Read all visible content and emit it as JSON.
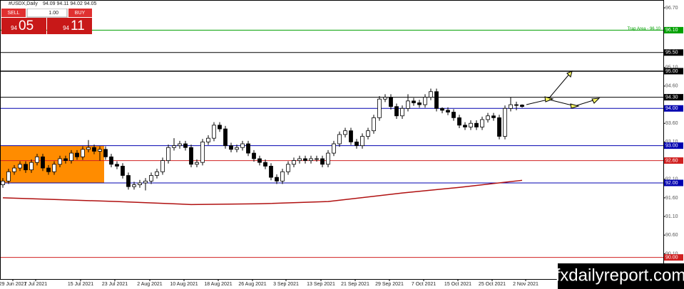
{
  "chart_data": {
    "type": "candlestick",
    "title": "#USDX,Daily",
    "header_values": "94.09 94.11 94.02 94.05",
    "trade_panel": {
      "sell": "SELL",
      "lot": "1.00",
      "buy": "BUY",
      "sell_big": "94",
      "sell_small": "05",
      "buy_big": "94",
      "buy_small": "11"
    },
    "watermark": "fxdailyreport.com",
    "categories": [
      "29 Jun 2021",
      "7 Jul 2021",
      "15 Jul 2021",
      "23 Jul 2021",
      "2 Aug 2021",
      "10 Aug 2021",
      "18 Aug 2021",
      "26 Aug 2021",
      "3 Sep 2021",
      "13 Sep 2021",
      "21 Sep 2021",
      "29 Sep 2021",
      "7 Oct 2021",
      "15 Oct 2021",
      "25 Oct 2021",
      "2 Nov 2021"
    ],
    "ylim": [
      89.42,
      96.91
    ],
    "yticks": [
      {
        "value": 96.7,
        "label": "96.70"
      },
      {
        "value": 96.1,
        "label": "96.10"
      },
      {
        "value": 95.1,
        "label": "95.10"
      },
      {
        "value": 94.6,
        "label": "94.60"
      },
      {
        "value": 93.6,
        "label": "93.60"
      },
      {
        "value": 93.1,
        "label": "93.10"
      },
      {
        "value": 92.1,
        "label": "92.10"
      },
      {
        "value": 91.6,
        "label": "91.60"
      },
      {
        "value": 91.1,
        "label": "91.10"
      },
      {
        "value": 90.6,
        "label": "90.60"
      },
      {
        "value": 90.1,
        "label": "90.10"
      }
    ],
    "levels": [
      {
        "value": 96.1,
        "label": "96.10",
        "color": "#00a000",
        "note": "Trap Area - 96.10"
      },
      {
        "value": 95.5,
        "label": "95.50",
        "color": "#000000"
      },
      {
        "value": 95.0,
        "label": "95.00",
        "color": "#000000"
      },
      {
        "value": 94.3,
        "label": "94.30",
        "color": "#000000"
      },
      {
        "value": 94.0,
        "label": "94.00",
        "color": "#0000b0"
      },
      {
        "value": 93.0,
        "label": "93.00",
        "color": "#0000b0"
      },
      {
        "value": 92.6,
        "label": "92.60",
        "color": "#d02020"
      },
      {
        "value": 92.0,
        "label": "92.00",
        "color": "#0000b0"
      },
      {
        "value": 90.0,
        "label": "90.00",
        "color": "#d02020"
      }
    ],
    "zone": {
      "from": 92.0,
      "to": 93.0,
      "color": "#ff8c00"
    },
    "ohlc": [
      [
        91.95,
        92.13,
        91.87,
        92.05
      ],
      [
        92.05,
        92.38,
        91.97,
        92.3
      ],
      [
        92.3,
        92.48,
        92.22,
        92.4
      ],
      [
        92.4,
        92.58,
        92.32,
        92.5
      ],
      [
        92.5,
        92.58,
        92.27,
        92.35
      ],
      [
        92.35,
        92.63,
        92.27,
        92.55
      ],
      [
        92.55,
        92.78,
        92.47,
        92.7
      ],
      [
        92.7,
        92.78,
        92.32,
        92.4
      ],
      [
        92.4,
        92.48,
        92.22,
        92.3
      ],
      [
        92.3,
        92.58,
        92.22,
        92.5
      ],
      [
        92.5,
        92.73,
        92.42,
        92.65
      ],
      [
        92.65,
        92.73,
        92.52,
        92.6
      ],
      [
        92.6,
        92.88,
        92.52,
        92.8
      ],
      [
        92.8,
        92.88,
        92.62,
        92.7
      ],
      [
        92.7,
        92.98,
        92.62,
        92.9
      ],
      [
        92.9,
        93.15,
        92.82,
        92.95
      ],
      [
        92.95,
        93.03,
        92.77,
        92.85
      ],
      [
        92.85,
        92.98,
        92.6,
        92.9
      ],
      [
        92.9,
        92.98,
        92.62,
        92.7
      ],
      [
        92.7,
        92.78,
        92.42,
        92.5
      ],
      [
        92.5,
        92.58,
        92.37,
        92.45
      ],
      [
        92.45,
        92.53,
        92.12,
        92.2
      ],
      [
        92.2,
        92.28,
        91.82,
        91.9
      ],
      [
        91.9,
        92.03,
        91.82,
        91.95
      ],
      [
        91.95,
        92.08,
        91.87,
        92.0
      ],
      [
        92.0,
        92.13,
        91.8,
        92.05
      ],
      [
        92.05,
        92.28,
        91.97,
        92.2
      ],
      [
        92.2,
        92.38,
        92.12,
        92.3
      ],
      [
        92.3,
        92.68,
        92.22,
        92.6
      ],
      [
        92.6,
        93.03,
        92.52,
        92.95
      ],
      [
        92.95,
        93.2,
        92.87,
        93.0
      ],
      [
        93.0,
        93.13,
        92.92,
        93.05
      ],
      [
        93.05,
        93.13,
        92.87,
        92.95
      ],
      [
        92.95,
        93.03,
        92.42,
        92.5
      ],
      [
        92.5,
        92.63,
        92.42,
        92.55
      ],
      [
        92.55,
        93.18,
        92.47,
        93.1
      ],
      [
        93.1,
        93.28,
        93.02,
        93.2
      ],
      [
        93.2,
        93.63,
        93.12,
        93.55
      ],
      [
        93.55,
        93.63,
        93.37,
        93.45
      ],
      [
        93.45,
        93.53,
        92.92,
        93.0
      ],
      [
        93.0,
        93.08,
        92.82,
        92.9
      ],
      [
        92.9,
        93.03,
        92.82,
        92.95
      ],
      [
        92.95,
        93.13,
        92.87,
        93.05
      ],
      [
        93.05,
        93.13,
        92.72,
        92.8
      ],
      [
        92.8,
        92.88,
        92.57,
        92.65
      ],
      [
        92.65,
        92.73,
        92.47,
        92.55
      ],
      [
        92.55,
        92.63,
        92.37,
        92.45
      ],
      [
        92.45,
        92.53,
        92.07,
        92.15
      ],
      [
        92.15,
        92.23,
        91.97,
        92.05
      ],
      [
        92.05,
        92.38,
        91.97,
        92.3
      ],
      [
        92.3,
        92.58,
        92.22,
        92.5
      ],
      [
        92.5,
        92.68,
        92.42,
        92.6
      ],
      [
        92.6,
        92.73,
        92.52,
        92.65
      ],
      [
        92.65,
        92.73,
        92.52,
        92.6
      ],
      [
        92.6,
        92.73,
        92.52,
        92.65
      ],
      [
        92.65,
        92.73,
        92.57,
        92.65
      ],
      [
        92.65,
        92.73,
        92.42,
        92.5
      ],
      [
        92.5,
        92.88,
        92.42,
        92.8
      ],
      [
        92.8,
        93.13,
        92.72,
        93.05
      ],
      [
        93.05,
        93.38,
        92.97,
        93.3
      ],
      [
        93.3,
        93.48,
        93.22,
        93.4
      ],
      [
        93.4,
        93.48,
        93.02,
        93.1
      ],
      [
        93.1,
        93.18,
        92.92,
        93.0
      ],
      [
        93.0,
        93.33,
        92.92,
        93.25
      ],
      [
        93.25,
        93.48,
        93.17,
        93.4
      ],
      [
        93.4,
        93.83,
        93.32,
        93.75
      ],
      [
        93.75,
        94.33,
        93.67,
        94.25
      ],
      [
        94.25,
        94.38,
        94.17,
        94.3
      ],
      [
        94.3,
        94.38,
        93.97,
        94.05
      ],
      [
        94.05,
        94.13,
        93.72,
        93.8
      ],
      [
        93.8,
        94.08,
        93.72,
        94.0
      ],
      [
        94.0,
        94.38,
        93.92,
        94.2
      ],
      [
        94.2,
        94.28,
        94.07,
        94.15
      ],
      [
        94.15,
        94.23,
        94.02,
        94.1
      ],
      [
        94.1,
        94.38,
        94.02,
        94.3
      ],
      [
        94.3,
        94.53,
        94.22,
        94.45
      ],
      [
        94.45,
        94.53,
        93.92,
        94.0
      ],
      [
        94.0,
        94.03,
        93.87,
        93.95
      ],
      [
        93.95,
        94.03,
        93.82,
        93.9
      ],
      [
        93.9,
        93.98,
        93.67,
        93.75
      ],
      [
        93.75,
        93.83,
        93.47,
        93.55
      ],
      [
        93.55,
        93.63,
        93.42,
        93.5
      ],
      [
        93.5,
        93.68,
        93.42,
        93.6
      ],
      [
        93.6,
        93.68,
        93.42,
        93.5
      ],
      [
        93.5,
        93.78,
        93.42,
        93.7
      ],
      [
        93.7,
        93.88,
        93.62,
        93.8
      ],
      [
        93.8,
        93.88,
        93.67,
        93.75
      ],
      [
        93.75,
        93.83,
        93.17,
        93.25
      ],
      [
        93.25,
        94.08,
        93.17,
        94.0
      ],
      [
        94.0,
        94.3,
        93.92,
        94.1
      ],
      [
        94.1,
        94.18,
        93.95,
        94.09
      ],
      [
        94.09,
        94.11,
        94.02,
        94.05
      ]
    ],
    "moving_average": {
      "color": "#b01010",
      "x": [
        0,
        10,
        20,
        33,
        45,
        57,
        70,
        80,
        91
      ],
      "values": [
        91.6,
        91.55,
        91.5,
        91.42,
        91.44,
        91.5,
        91.73,
        91.88,
        92.07
      ]
    }
  }
}
